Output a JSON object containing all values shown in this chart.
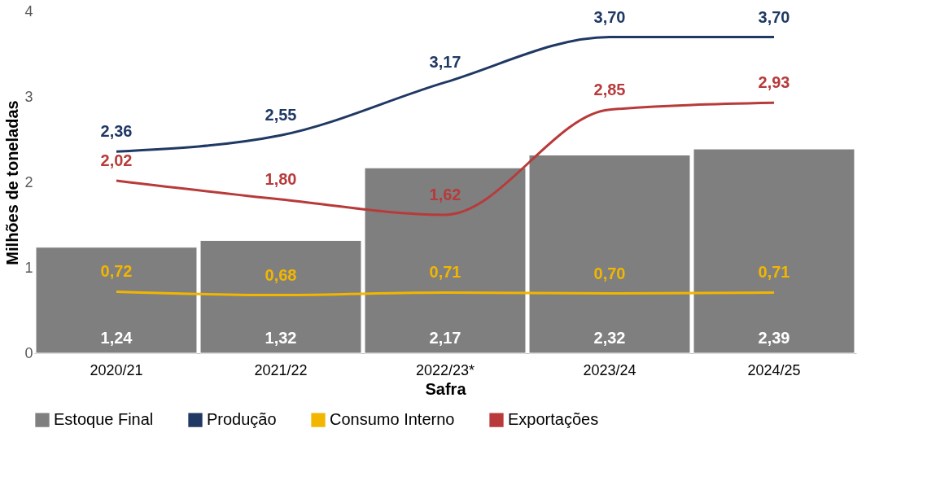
{
  "chart_data": {
    "type": "bar",
    "xlabel": "Safra",
    "ylabel": "Milhões de toneladas",
    "categories": [
      "2020/21",
      "2021/22",
      "2022/23*",
      "2023/24",
      "2024/25"
    ],
    "series": [
      {
        "name": "Estoque Final",
        "color": "#7f7f7f",
        "values": [
          1.24,
          1.32,
          2.17,
          2.32,
          2.39
        ],
        "value_labels": [
          "1,24",
          "1,32",
          "2,17",
          "2,32",
          "2,39"
        ]
      },
      {
        "name": "Produção",
        "type": "line",
        "color": "#1f3864",
        "values": [
          2.36,
          2.55,
          3.17,
          3.7,
          3.7
        ],
        "value_labels": [
          "2,36",
          "2,55",
          "3,17",
          "3,70",
          "3,70"
        ]
      },
      {
        "name": "Consumo Interno",
        "type": "line",
        "color": "#f2b600",
        "values": [
          0.72,
          0.68,
          0.71,
          0.7,
          0.71
        ],
        "value_labels": [
          "0,72",
          "0,68",
          "0,71",
          "0,70",
          "0,71"
        ]
      },
      {
        "name": "Exportações",
        "type": "line",
        "color": "#b83a3a",
        "values": [
          2.02,
          1.8,
          1.62,
          2.85,
          2.93
        ],
        "value_labels": [
          "2,02",
          "1,80",
          "1,62",
          "2,85",
          "2,93"
        ]
      }
    ],
    "ylim": [
      0,
      4
    ],
    "yticks": [
      0,
      1,
      2,
      3,
      4
    ],
    "grid": false,
    "legend": "bottom",
    "line_style": "solid"
  }
}
